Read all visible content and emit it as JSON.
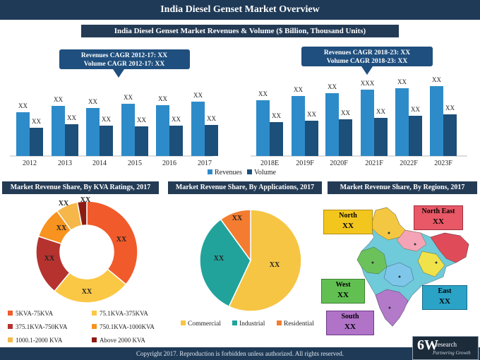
{
  "title": "India Diesel Genset Market Overview",
  "subtitle": "India Diesel Genset Market  Revenues & Volume ($ Billion, Thousand Units)",
  "cagr_left": {
    "line1": "Revenues CAGR 2012-17: XX",
    "line2": "Volume CAGR 2012-17: XX"
  },
  "cagr_right": {
    "line1": "Revenues CAGR 2018-23: XX",
    "line2": "Volume CAGR 2018-23: XX"
  },
  "panels": {
    "kva": "Market Revenue Share, By KVA Ratings, 2017",
    "applications": "Market Revenue Share, By Applications, 2017",
    "regions": "Market Revenue Share, By Regions, 2017"
  },
  "regions": {
    "north": {
      "name": "North",
      "value": "XX",
      "color": "#f3c61e"
    },
    "north_east": {
      "name": "North East",
      "value": "XX",
      "color": "#e85866"
    },
    "west": {
      "name": "West",
      "value": "XX",
      "color": "#62c053"
    },
    "east": {
      "name": "East",
      "value": "XX",
      "color": "#2aa3c6"
    },
    "south": {
      "name": "South",
      "value": "XX",
      "color": "#b073c8"
    }
  },
  "footer": "Copyright 2017. Reproduction is forbidden unless authorized. All rights reserved.",
  "logo": {
    "big": "6W",
    "small": "research",
    "tag": "Partnering Growth"
  },
  "chart_data": [
    {
      "type": "bar",
      "categories": [
        "2012",
        "2013",
        "2014",
        "2015",
        "2016",
        "2017",
        "2018E",
        "2019F",
        "2020F",
        "2021F",
        "2022F",
        "2023F"
      ],
      "series": [
        {
          "name": "Revenues",
          "color": "#2e8bc9",
          "values": [
            0.62,
            0.71,
            0.68,
            0.74,
            0.72,
            0.77,
            0.79,
            0.85,
            0.89,
            0.94,
            0.96,
            0.99
          ],
          "labels": [
            "XX",
            "XX",
            "XX",
            "XX",
            "XX",
            "XX",
            "XX",
            "XX",
            "XX",
            "XXX",
            "XX",
            "XX"
          ]
        },
        {
          "name": "Volume",
          "color": "#1c4f7a",
          "values": [
            0.4,
            0.45,
            0.43,
            0.42,
            0.43,
            0.44,
            0.48,
            0.5,
            0.52,
            0.54,
            0.57,
            0.59
          ],
          "labels": [
            "XX",
            "XX",
            "XX",
            "XX",
            "XX",
            "XX",
            "XX",
            "XX",
            "XX",
            "XX",
            "XX",
            "XX"
          ]
        }
      ],
      "legend": "bottom",
      "grid": false
    },
    {
      "type": "pie",
      "variant": "donut",
      "labels": [
        "5KVA-75KVA",
        "75.1KVA-375KVA",
        "375.1KVA-750KVA",
        "750.1KVA-1000KVA",
        "1000.1-2000 KVA",
        "Above 2000 KVA"
      ],
      "values": [
        36,
        25,
        19,
        10,
        7,
        3
      ],
      "slice_labels": [
        "XX",
        "XX",
        "XX",
        "XX",
        "XX",
        "XX"
      ],
      "colors": [
        "#f15a2b",
        "#fbc845",
        "#b5322f",
        "#f7931e",
        "#f5b74a",
        "#8c1c13"
      ],
      "legend": "bottom"
    },
    {
      "type": "pie",
      "labels": [
        "Commercial",
        "Industrial",
        "Residential"
      ],
      "values": [
        57,
        33,
        10
      ],
      "slice_labels": [
        "XX",
        "XX",
        "XX"
      ],
      "colors": [
        "#f6c544",
        "#21a39b",
        "#f47c30"
      ],
      "legend": "bottom"
    }
  ]
}
